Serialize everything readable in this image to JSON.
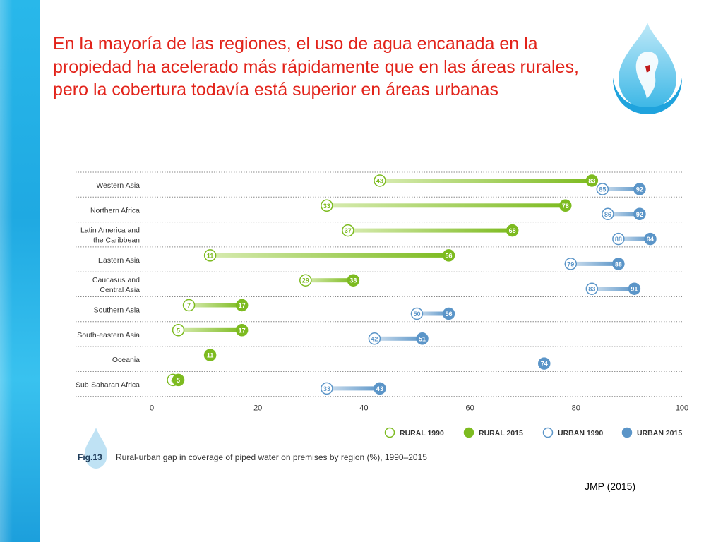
{
  "slide": {
    "title": "En la mayoría de las regiones, el uso de agua encanada en la propiedad ha acelerado más rápidamente que en las áreas rurales, pero la cobertura todavía está superior en áreas urbanas",
    "source": "JMP (2015)"
  },
  "colors": {
    "rural": "#7dbb20",
    "rural_light": "#d7ebb0",
    "urban": "#5b95c8",
    "urban_light": "#cfe0ef",
    "title": "#e2231a",
    "band": "#22aee6"
  },
  "figure": {
    "number": "Fig.13",
    "caption": "Rural-urban gap in coverage of piped water on premises by region (%), 1990–2015"
  },
  "chart_data": {
    "type": "dumbbell",
    "xlim": [
      0,
      100
    ],
    "x_ticks": [
      "0",
      "20",
      "40",
      "60",
      "80",
      "100"
    ],
    "legend": [
      "RURAL 1990",
      "RURAL 2015",
      "URBAN 1990",
      "URBAN 2015"
    ],
    "legend_position": "bottom-right",
    "grid": "dotted horizontal separators",
    "categories": [
      {
        "label": [
          "Western Asia"
        ],
        "rural": [
          43,
          83
        ],
        "urban": [
          85,
          92
        ]
      },
      {
        "label": [
          "Northern Africa"
        ],
        "rural": [
          33,
          78
        ],
        "urban": [
          86,
          92
        ]
      },
      {
        "label": [
          "Latin America and",
          "the Caribbean"
        ],
        "rural": [
          37,
          68
        ],
        "urban": [
          88,
          94
        ]
      },
      {
        "label": [
          "Eastern Asia"
        ],
        "rural": [
          11,
          56
        ],
        "urban": [
          79,
          88
        ]
      },
      {
        "label": [
          "Caucasus and",
          "Central Asia"
        ],
        "rural": [
          29,
          38
        ],
        "urban": [
          83,
          91
        ]
      },
      {
        "label": [
          "Southern Asia"
        ],
        "rural": [
          7,
          17
        ],
        "urban": [
          50,
          56
        ]
      },
      {
        "label": [
          "South-eastern Asia"
        ],
        "rural": [
          5,
          17
        ],
        "urban": [
          42,
          51
        ]
      },
      {
        "label": [
          "Oceania"
        ],
        "rural": [
          null,
          11
        ],
        "urban": [
          null,
          74
        ]
      },
      {
        "label": [
          "Sub-Saharan Africa"
        ],
        "rural": [
          4,
          5
        ],
        "urban": [
          33,
          43
        ]
      }
    ]
  }
}
